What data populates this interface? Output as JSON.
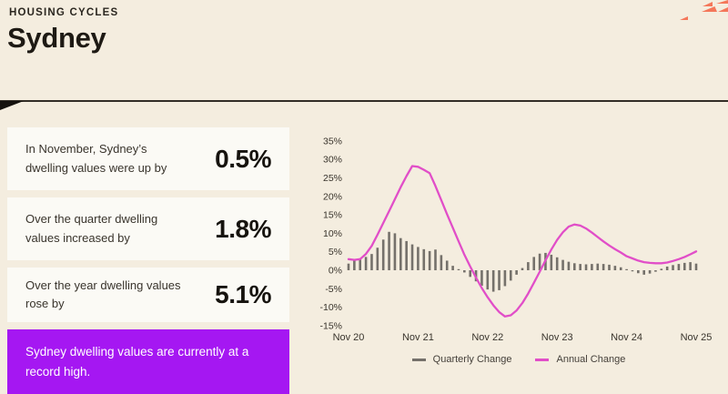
{
  "theme": {
    "background": "#F4EDDF",
    "card_bg": "#FBFAF5",
    "divider": "#332E27",
    "accent_purple": "#A517F2",
    "accent_salmon": "#F4775A",
    "bar_gray": "#75716B",
    "line_magenta": "#E14EC8"
  },
  "header": {
    "eyebrow": "HOUSING CYCLES",
    "title": "Sydney"
  },
  "stats": [
    {
      "label": "In November, Sydney’s dwelling values were up by",
      "value": "0.5%"
    },
    {
      "label": "Over the quarter dwelling values increased by",
      "value": "1.8%"
    },
    {
      "label": "Over the year dwelling values rose by",
      "value": "5.1%"
    }
  ],
  "callout": {
    "text": "Sydney dwelling values are currently at a record high."
  },
  "chart_data": {
    "type": "combo",
    "x_tick_labels": [
      "Nov 20",
      "Nov 21",
      "Nov 22",
      "Nov 23",
      "Nov 24",
      "Nov 25"
    ],
    "y_ticks": [
      35,
      30,
      25,
      20,
      15,
      10,
      5,
      0,
      -5,
      -10,
      -15
    ],
    "y_tick_suffix": "%",
    "ylim": [
      -15,
      35
    ],
    "grid": false,
    "legend_position": "bottom",
    "series": [
      {
        "name": "Quarterly Change",
        "type": "bar",
        "color": "#75716B",
        "values": [
          1.8,
          2.8,
          3.2,
          3.6,
          4.4,
          6.1,
          8.3,
          10.4,
          10.0,
          8.7,
          7.9,
          7.0,
          6.3,
          5.7,
          5.2,
          5.6,
          4.1,
          2.6,
          1.2,
          0.3,
          -0.6,
          -1.8,
          -3.0,
          -4.2,
          -5.2,
          -5.8,
          -5.4,
          -4.3,
          -2.8,
          -1.2,
          0.6,
          2.2,
          3.6,
          4.5,
          4.7,
          4.2,
          3.5,
          2.8,
          2.3,
          1.9,
          1.7,
          1.6,
          1.7,
          1.8,
          1.7,
          1.5,
          1.2,
          0.8,
          0.3,
          -0.3,
          -0.8,
          -1.2,
          -0.9,
          -0.4,
          0.4,
          1.0,
          1.4,
          1.7,
          2.0,
          2.2,
          1.8
        ]
      },
      {
        "name": "Annual Change",
        "type": "line",
        "color": "#E14EC8",
        "values": [
          3.0,
          2.8,
          3.0,
          4.4,
          6.6,
          9.6,
          12.8,
          16.0,
          19.2,
          22.5,
          25.5,
          28.2,
          28.0,
          27.2,
          26.3,
          22.8,
          19.0,
          15.2,
          11.5,
          7.8,
          4.2,
          1.0,
          -2.0,
          -4.8,
          -7.3,
          -9.5,
          -11.3,
          -12.5,
          -12.2,
          -10.9,
          -8.9,
          -6.3,
          -3.4,
          -0.4,
          2.7,
          5.6,
          8.2,
          10.3,
          11.8,
          12.4,
          12.1,
          11.3,
          10.2,
          9.0,
          7.8,
          6.7,
          5.7,
          4.8,
          3.8,
          3.2,
          2.6,
          2.2,
          2.0,
          1.9,
          1.9,
          2.1,
          2.5,
          3.0,
          3.6,
          4.3,
          5.1
        ]
      }
    ]
  }
}
